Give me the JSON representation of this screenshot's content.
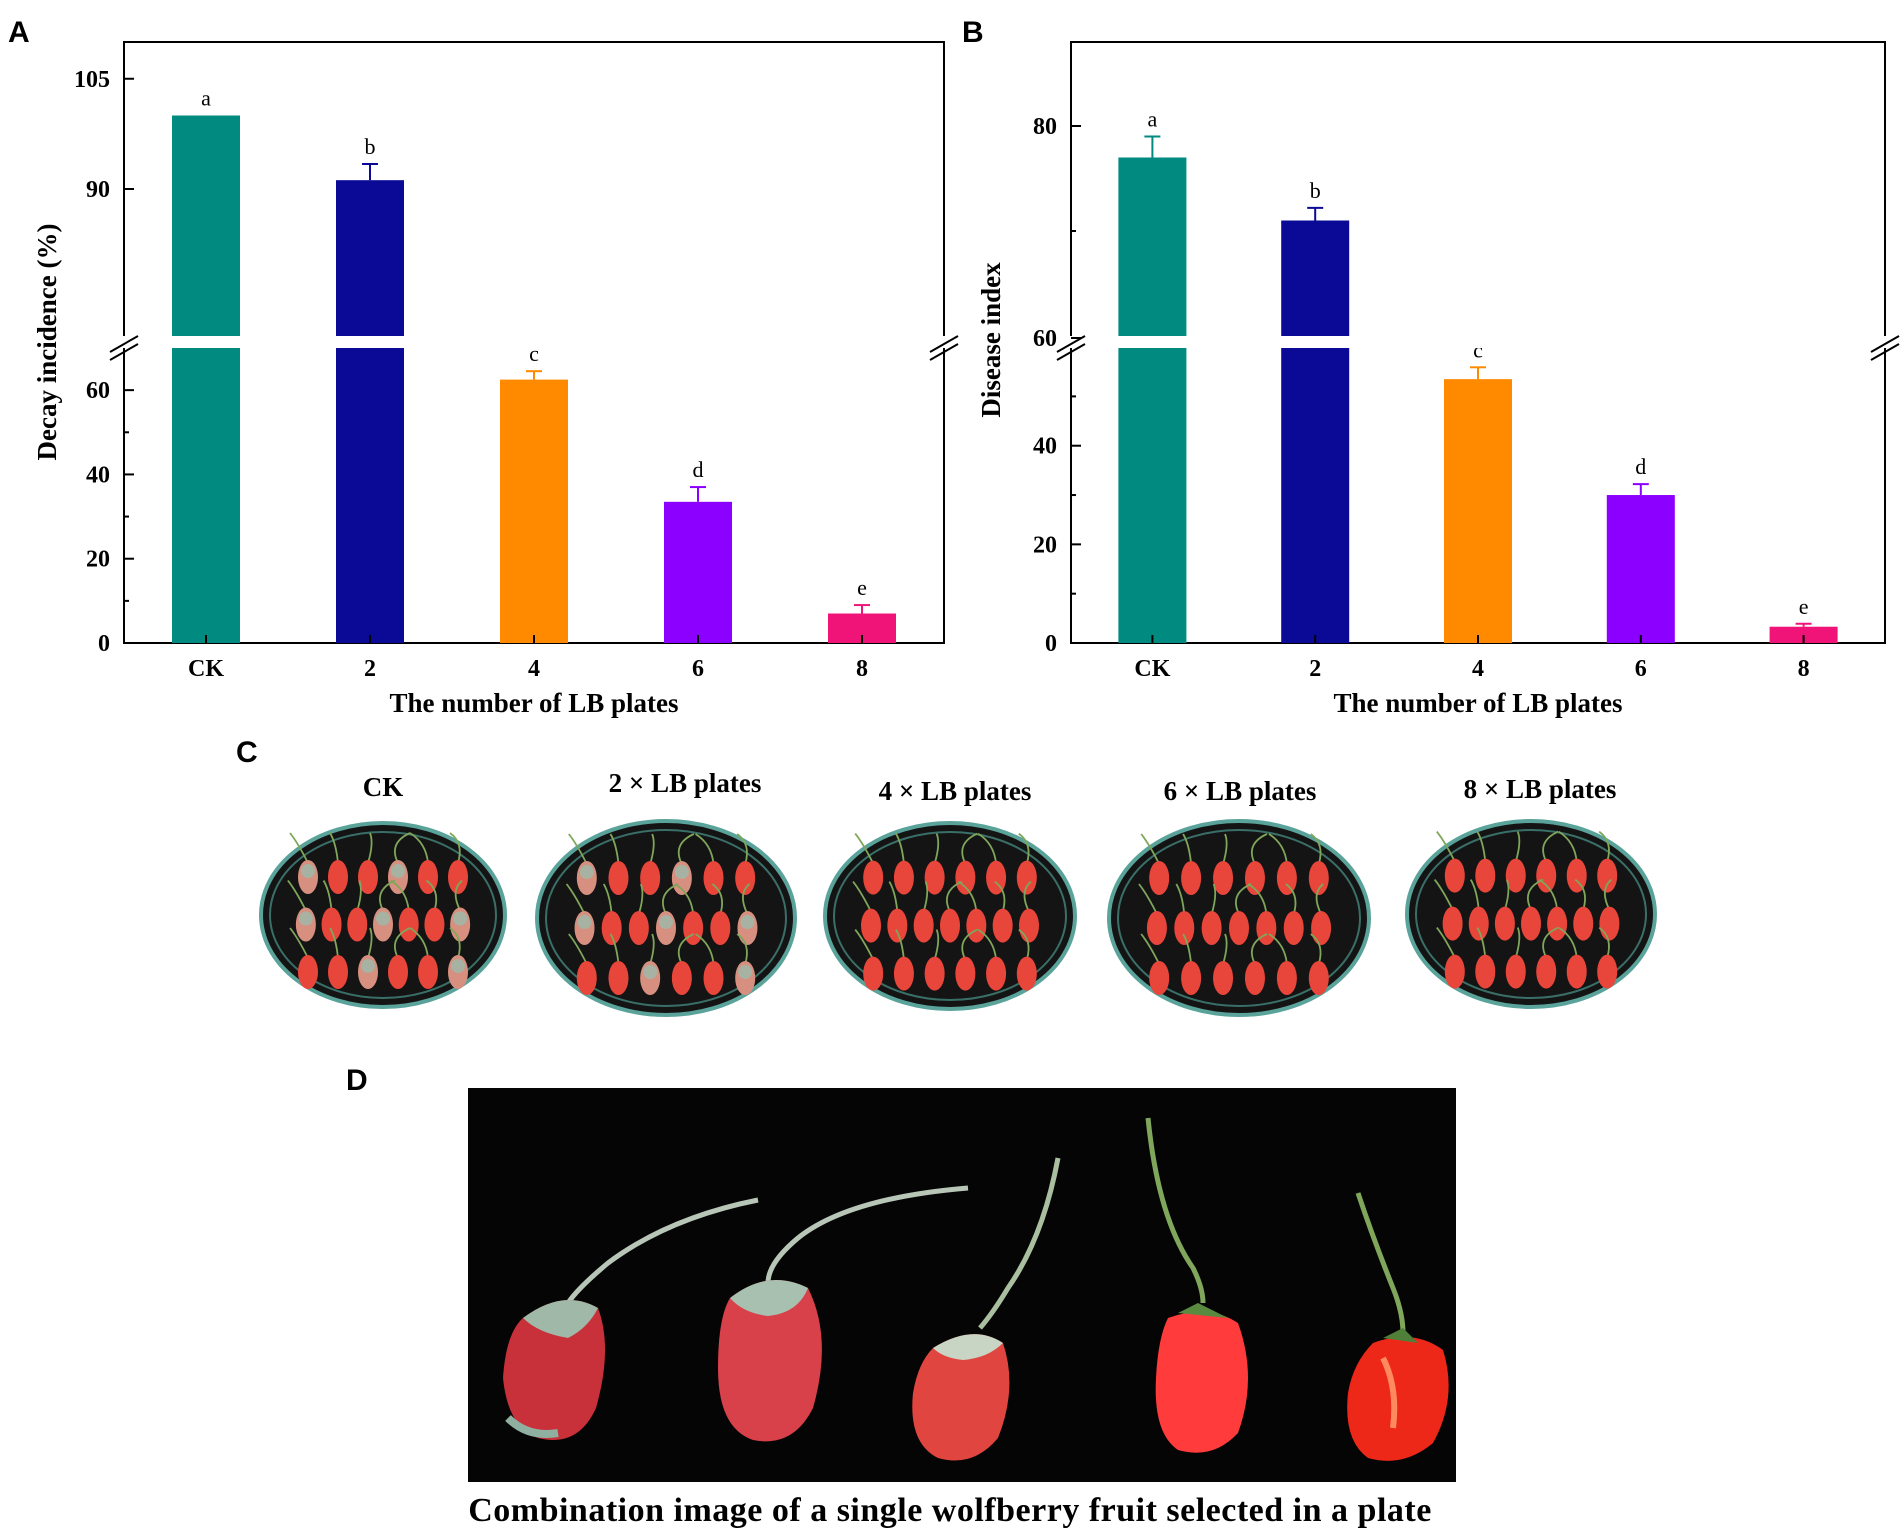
{
  "panels": {
    "a": "A",
    "b": "B",
    "c": "C",
    "d": "D"
  },
  "chart_data": [
    {
      "type": "bar",
      "title": "",
      "xlabel": "The number of LB plates",
      "ylabel": "Decay incidence (%)",
      "categories": [
        "CK",
        "2",
        "4",
        "6",
        "8"
      ],
      "values": [
        100,
        91.2,
        62.5,
        33.5,
        7.0
      ],
      "errors": [
        0,
        2.2,
        2.0,
        3.5,
        2.0
      ],
      "letters": [
        "a",
        "b",
        "c",
        "d",
        "e"
      ],
      "colors": [
        "#008a80",
        "#0a0a96",
        "#ff8a00",
        "#8c00ff",
        "#f01478"
      ],
      "ylim_lower": [
        0,
        70
      ],
      "ylim_upper": [
        70,
        110
      ],
      "yticks": [
        "0",
        "20",
        "40",
        "60",
        "90",
        "105"
      ],
      "break_axis": true
    },
    {
      "type": "bar",
      "title": "",
      "xlabel": "The number of LB plates",
      "ylabel": "Disease index",
      "categories": [
        "CK",
        "2",
        "4",
        "6",
        "8"
      ],
      "values": [
        77,
        71,
        53.5,
        30,
        3.3
      ],
      "errors": [
        2,
        1.2,
        2.4,
        2.2,
        0.6
      ],
      "letters": [
        "a",
        "b",
        "c",
        "d",
        "e"
      ],
      "colors": [
        "#008a80",
        "#0a0a96",
        "#ff8a00",
        "#8c00ff",
        "#f01478"
      ],
      "ylim_lower": [
        0,
        59
      ],
      "ylim_upper": [
        60,
        88
      ],
      "yticks": [
        "0",
        "20",
        "40",
        "60",
        "80"
      ],
      "break_axis": true
    }
  ],
  "plates": {
    "titles": [
      "CK",
      "2 × LB plates",
      "4 × LB plates",
      "6 × LB plates",
      "8 × LB plates"
    ]
  },
  "photo_d": {
    "caption": "Combination image of a single wolfberry fruit selected in a plate"
  },
  "colors": {
    "fruit_red": "#e8463a",
    "mold": "#9fb8a8",
    "stem": "#7fa65a",
    "plate_rim": "#5aa39a",
    "plate_bg": "#141414"
  }
}
